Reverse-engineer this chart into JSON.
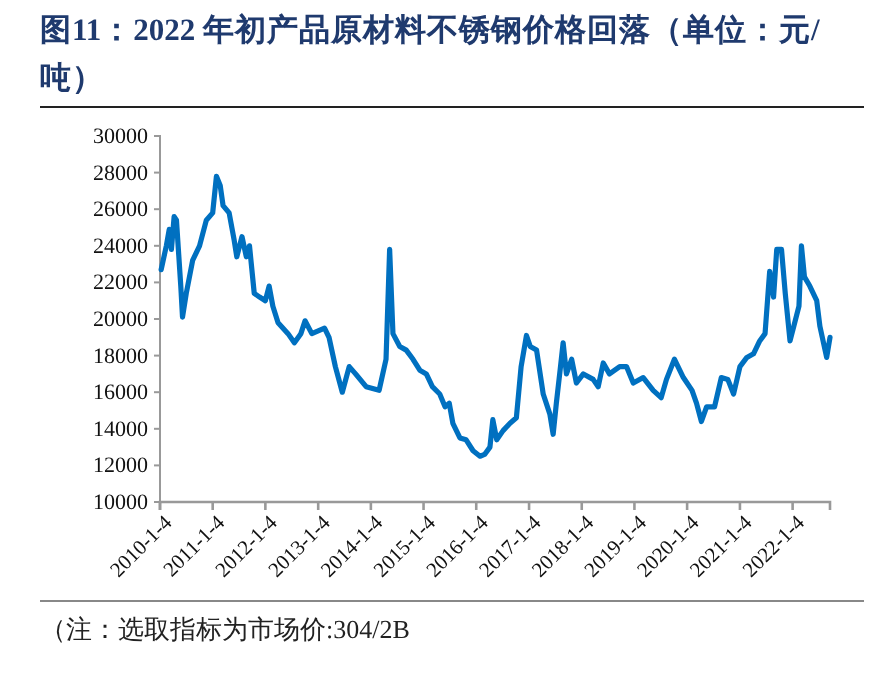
{
  "chart_data": {
    "type": "line",
    "title": "图11：2022 年初产品原材料不锈钢价格回落（单位：元/吨）",
    "annotations": [
      "（注：选取指标为市场价:304/2B"
    ],
    "x": [
      "2010-01-12",
      "2010-02-17",
      "2010-03-09",
      "2010-03-24",
      "2010-04-12",
      "2010-04-28",
      "2010-05-28",
      "2010-06-09",
      "2010-07-05",
      "2010-08-18",
      "2010-10-05",
      "2010-11-21",
      "2011-01-04",
      "2011-01-30",
      "2011-02-25",
      "2011-03-17",
      "2011-04-28",
      "2011-06-02",
      "2011-06-20",
      "2011-07-26",
      "2011-08-25",
      "2011-09-16",
      "2011-10-19",
      "2011-11-25",
      "2012-01-04",
      "2012-01-30",
      "2012-02-25",
      "2012-04-01",
      "2012-06-09",
      "2012-07-23",
      "2012-09-06",
      "2012-10-05",
      "2012-11-21",
      "2013-02-17",
      "2013-03-20",
      "2013-05-03",
      "2013-06-20",
      "2013-08-07",
      "2013-09-20",
      "2013-12-02",
      "2014-03-02",
      "2014-04-19",
      "2014-05-14",
      "2014-06-06",
      "2014-07-23",
      "2014-09-06",
      "2014-10-23",
      "2014-12-09",
      "2015-01-23",
      "2015-03-06",
      "2015-04-26",
      "2015-06-02",
      "2015-07-01",
      "2015-07-26",
      "2015-09-13",
      "2015-10-26",
      "2015-12-13",
      "2016-01-30",
      "2016-03-02",
      "2016-04-08",
      "2016-04-28",
      "2016-05-25",
      "2016-07-08",
      "2016-08-25",
      "2016-10-08",
      "2016-11-10",
      "2016-12-17",
      "2017-01-12",
      "2017-02-25",
      "2017-04-12",
      "2017-05-28",
      "2017-06-20",
      "2017-07-12",
      "2017-08-07",
      "2017-08-28",
      "2017-09-20",
      "2017-10-26",
      "2017-11-28",
      "2018-01-15",
      "2018-03-24",
      "2018-04-28",
      "2018-06-02",
      "2018-07-15",
      "2018-09-24",
      "2018-11-10",
      "2018-12-27",
      "2019-03-06",
      "2019-05-14",
      "2019-07-08",
      "2019-08-14",
      "2019-10-08",
      "2019-12-09",
      "2020-02-07",
      "2020-03-09",
      "2020-04-12",
      "2020-05-18",
      "2020-07-12",
      "2020-08-28",
      "2020-10-12",
      "2020-11-21",
      "2021-01-04",
      "2021-02-21",
      "2021-04-08",
      "2021-05-21",
      "2021-06-27",
      "2021-07-29",
      "2021-08-25",
      "2021-09-16",
      "2021-10-19",
      "2021-11-14",
      "2021-12-17",
      "2022-01-12",
      "2022-02-17",
      "2022-03-06",
      "2022-03-27",
      "2022-05-03",
      "2022-06-20",
      "2022-07-12",
      "2022-08-28",
      "2022-09-20"
    ],
    "series": [
      {
        "color": "#0070c0",
        "values": [
          22700,
          24000,
          24900,
          23800,
          25600,
          25400,
          21800,
          20100,
          21400,
          23200,
          24000,
          25400,
          25800,
          27800,
          27300,
          26200,
          25800,
          24300,
          23400,
          24500,
          23400,
          24000,
          21400,
          21200,
          21000,
          21800,
          20700,
          19800,
          19200,
          18700,
          19200,
          19900,
          19200,
          19500,
          19000,
          17400,
          16000,
          17400,
          17000,
          16300,
          16100,
          17800,
          23800,
          19200,
          18500,
          18300,
          17800,
          17200,
          17000,
          16300,
          15900,
          15200,
          15400,
          14300,
          13500,
          13400,
          12800,
          12500,
          12600,
          13000,
          14500,
          13400,
          13900,
          14300,
          14600,
          17400,
          19100,
          18500,
          18300,
          15900,
          14800,
          13700,
          15400,
          17200,
          18700,
          17000,
          17800,
          16500,
          17000,
          16700,
          16300,
          17600,
          17000,
          17400,
          17400,
          16500,
          16800,
          16100,
          15700,
          16700,
          17800,
          16800,
          16100,
          15400,
          14400,
          15200,
          15200,
          16800,
          16700,
          15900,
          17400,
          17900,
          18100,
          18800,
          19200,
          22600,
          21200,
          23800,
          23800,
          21400,
          18800,
          19600,
          20700,
          24000,
          22300,
          21800,
          21000,
          19600,
          17900,
          19000
        ]
      }
    ],
    "xlim": [
      "2010-01-04",
      "2022-09-20"
    ],
    "xticks": [
      {
        "value": "2010-01-04",
        "label": "2010-1-4"
      },
      {
        "value": "2011-01-04",
        "label": "2011-1-4"
      },
      {
        "value": "2012-01-04",
        "label": "2012-1-4"
      },
      {
        "value": "2013-01-04",
        "label": "2013-1-4"
      },
      {
        "value": "2014-01-04",
        "label": "2014-1-4"
      },
      {
        "value": "2015-01-04",
        "label": "2015-1-4"
      },
      {
        "value": "2016-01-04",
        "label": "2016-1-4"
      },
      {
        "value": "2017-01-04",
        "label": "2017-1-4"
      },
      {
        "value": "2018-01-04",
        "label": "2018-1-4"
      },
      {
        "value": "2019-01-04",
        "label": "2019-1-4"
      },
      {
        "value": "2020-01-04",
        "label": "2020-1-4"
      },
      {
        "value": "2021-01-04",
        "label": "2021-1-4"
      },
      {
        "value": "2022-01-04",
        "label": "2022-1-4"
      }
    ],
    "ylim": [
      10000,
      30000
    ],
    "yticks": [
      10000,
      12000,
      14000,
      16000,
      18000,
      20000,
      22000,
      24000,
      26000,
      28000,
      30000
    ],
    "marker": "none",
    "line_style": "solid"
  }
}
